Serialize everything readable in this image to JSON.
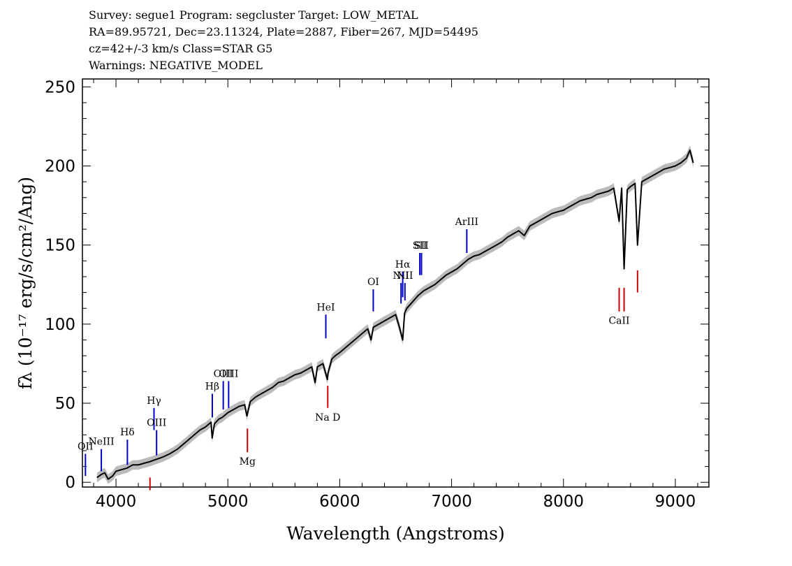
{
  "header": {
    "line1": "Survey: segue1 Program: segcluster Target: LOW_METAL",
    "line2": "RA=89.95721, Dec=23.11324, Plate=2887, Fiber=267, MJD=54495",
    "line3": "cz=42+/-3 km/s Class=STAR G5",
    "line4": "Warnings: NEGATIVE_MODEL"
  },
  "colors": {
    "spectrum": "#000000",
    "error_band": "#bbbbbb",
    "emission": "#0000cc",
    "absorption": "#cc0000",
    "sky": "#000000"
  },
  "chart_data": {
    "type": "line",
    "xlabel": "Wavelength (Angstroms)",
    "ylabel": "fλ (10⁻¹⁷ erg/s/cm²/Ang)",
    "xlim": [
      3700,
      9300
    ],
    "ylim": [
      -3,
      255
    ],
    "xticks": [
      4000,
      5000,
      6000,
      7000,
      8000,
      9000
    ],
    "yticks": [
      0,
      50,
      100,
      150,
      200,
      250
    ],
    "grid": false,
    "series": [
      {
        "x": [
          3830,
          3870,
          3900,
          3930,
          3970,
          4000,
          4050,
          4100,
          4150,
          4200,
          4250,
          4300,
          4340,
          4380,
          4420,
          4480,
          4550,
          4600,
          4650,
          4700,
          4750,
          4800,
          4850,
          4860,
          4880,
          4920,
          4950,
          5000,
          5050,
          5100,
          5150,
          5170,
          5200,
          5250,
          5300,
          5350,
          5400,
          5450,
          5500,
          5550,
          5600,
          5650,
          5700,
          5750,
          5780,
          5800,
          5850,
          5890,
          5895,
          5930,
          5960,
          6000,
          6050,
          6100,
          6150,
          6200,
          6250,
          6280,
          6300,
          6350,
          6400,
          6450,
          6500,
          6530,
          6563,
          6580,
          6600,
          6650,
          6700,
          6750,
          6800,
          6850,
          6900,
          6950,
          7000,
          7050,
          7100,
          7150,
          7200,
          7250,
          7300,
          7350,
          7400,
          7450,
          7500,
          7550,
          7600,
          7650,
          7700,
          7750,
          7800,
          7850,
          7900,
          7950,
          8000,
          8050,
          8100,
          8150,
          8200,
          8250,
          8300,
          8350,
          8400,
          8450,
          8498,
          8520,
          8542,
          8570,
          8600,
          8640,
          8662,
          8700,
          8750,
          8800,
          8850,
          8900,
          8950,
          9000,
          9050,
          9100,
          9130,
          9160
        ],
        "y": [
          3,
          5,
          6,
          2,
          4,
          7,
          8,
          9,
          11,
          11,
          12,
          13,
          14,
          15,
          16,
          18,
          21,
          24,
          27,
          30,
          33,
          35,
          38,
          28,
          37,
          40,
          41,
          44,
          46,
          48,
          49,
          42,
          51,
          54,
          56,
          58,
          60,
          63,
          64,
          66,
          68,
          69,
          71,
          73,
          63,
          73,
          75,
          65,
          69,
          78,
          80,
          82,
          85,
          88,
          91,
          94,
          97,
          90,
          98,
          100,
          102,
          104,
          106,
          99,
          90,
          107,
          110,
          114,
          118,
          121,
          123,
          125,
          128,
          131,
          133,
          135,
          138,
          141,
          143,
          144,
          146,
          148,
          150,
          152,
          155,
          157,
          159,
          156,
          162,
          164,
          166,
          168,
          170,
          171,
          172,
          174,
          176,
          178,
          179,
          180,
          182,
          183,
          184,
          186,
          165,
          186,
          135,
          185,
          187,
          189,
          150,
          190,
          192,
          194,
          196,
          198,
          199,
          200,
          202,
          205,
          210,
          202
        ]
      }
    ],
    "emission_lines": [
      {
        "label": "OII",
        "x": 3727,
        "y0": 4,
        "y1": 18
      },
      {
        "label": "NeIII",
        "x": 3869,
        "y0": 7,
        "y1": 21
      },
      {
        "label": "Hδ",
        "x": 4102,
        "y0": 11,
        "y1": 27
      },
      {
        "label": "Hγ",
        "x": 4340,
        "y0": 33,
        "y1": 47
      },
      {
        "label": "OIII",
        "x": 4363,
        "y0": 17,
        "y1": 33
      },
      {
        "label": "Hβ",
        "x": 4861,
        "y0": 41,
        "y1": 56
      },
      {
        "label": "OIII",
        "x": 4959,
        "y0": 46,
        "y1": 64
      },
      {
        "label": "OIII",
        "x": 5007,
        "y0": 47,
        "y1": 64
      },
      {
        "label": "HeI",
        "x": 5876,
        "y0": 91,
        "y1": 106
      },
      {
        "label": "OI",
        "x": 6300,
        "y0": 108,
        "y1": 122
      },
      {
        "label": "NII",
        "x": 6548,
        "y0": 113,
        "y1": 126
      },
      {
        "label": "Hα",
        "x": 6563,
        "y0": 117,
        "y1": 133
      },
      {
        "label": "NII",
        "x": 6583,
        "y0": 115,
        "y1": 126
      },
      {
        "label": "SII",
        "x": 6716,
        "y0": 131,
        "y1": 145
      },
      {
        "label": "SII",
        "x": 6731,
        "y0": 131,
        "y1": 145
      },
      {
        "label": "ArIII",
        "x": 7136,
        "y0": 145,
        "y1": 160
      }
    ],
    "absorption_lines": [
      {
        "label": "",
        "x": 4304,
        "y0": -5,
        "y1": 3
      },
      {
        "label": "Mg",
        "x": 5175,
        "y0": 19,
        "y1": 34
      },
      {
        "label": "Na D",
        "x": 5893,
        "y0": 47,
        "y1": 61
      },
      {
        "label": "CaII",
        "x": 8498,
        "y0": 108,
        "y1": 123
      },
      {
        "label": "",
        "x": 8542,
        "y0": 108,
        "y1": 123
      },
      {
        "label": "",
        "x": 8662,
        "y0": 120,
        "y1": 134
      }
    ]
  }
}
